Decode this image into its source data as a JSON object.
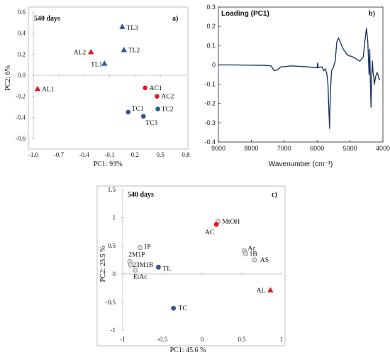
{
  "chart_data": [
    {
      "type": "scatter",
      "panel": "a)",
      "title": "540 days",
      "xlabel": "PC1: 93%",
      "ylabel": "PC2: 6%",
      "xlim": [
        -1.0,
        0.8
      ],
      "ylim": [
        -0.6,
        0.6
      ],
      "xticks": [
        "-1.0",
        "-0.7",
        "-0.4",
        "-0.1",
        "0.2",
        "0.5",
        "0.8"
      ],
      "yticks": [
        "0.6",
        "0.4",
        "0.2",
        "0.0",
        "-0.2",
        "-0.4",
        "-0.6"
      ],
      "colors": {
        "red": "#e8161e",
        "blue": "#2f5597"
      },
      "points": [
        {
          "label": "AL1",
          "x": -0.95,
          "y": -0.13,
          "shape": "triangle",
          "color": "red"
        },
        {
          "label": "AL2",
          "x": -0.32,
          "y": 0.22,
          "shape": "triangle",
          "color": "red"
        },
        {
          "label": "TL3",
          "x": 0.05,
          "y": 0.46,
          "shape": "triangle",
          "color": "blue"
        },
        {
          "label": "TL2",
          "x": 0.07,
          "y": 0.24,
          "shape": "triangle",
          "color": "blue"
        },
        {
          "label": "TL1",
          "x": -0.16,
          "y": 0.11,
          "shape": "triangle",
          "color": "blue"
        },
        {
          "label": "AC1",
          "x": 0.32,
          "y": -0.12,
          "shape": "circle",
          "color": "red"
        },
        {
          "label": "AC2",
          "x": 0.46,
          "y": -0.2,
          "shape": "circle",
          "color": "red"
        },
        {
          "label": "TC1",
          "x": 0.12,
          "y": -0.35,
          "shape": "circle",
          "color": "blue"
        },
        {
          "label": "TC2",
          "x": 0.47,
          "y": -0.32,
          "shape": "circle",
          "color": "blue"
        },
        {
          "label": "TC3",
          "x": 0.3,
          "y": -0.39,
          "shape": "circle",
          "color": "blue"
        }
      ]
    },
    {
      "type": "line",
      "panel": "b)",
      "title": "Loading (PC1)",
      "xlabel": "Wavenumber (cm⁻¹)",
      "ylabel": "",
      "xlim": [
        9000,
        4000
      ],
      "ylim": [
        -0.4,
        0.3
      ],
      "xticks": [
        "9000",
        "8000",
        "7000",
        "6000",
        "5000",
        "4000"
      ],
      "yticks": [
        "0.3",
        "0.2",
        "0.1",
        "0",
        "-0.1",
        "-0.2",
        "-0.3",
        "-0.4"
      ],
      "line_color": "#1f3864",
      "x": [
        9000,
        8600,
        8200,
        7600,
        7400,
        7300,
        7200,
        7100,
        7000,
        6800,
        6500,
        6300,
        6000,
        5980,
        5960,
        5900,
        5850,
        5800,
        5750,
        5700,
        5670,
        5650,
        5620,
        5600,
        5560,
        5500,
        5450,
        5400,
        5350,
        5300,
        5250,
        5200,
        5150,
        5100,
        5050,
        5000,
        4950,
        4900,
        4850,
        4800,
        4700,
        4600,
        4550,
        4500,
        4460,
        4420,
        4400,
        4380,
        4360,
        4340,
        4320,
        4300,
        4280,
        4260,
        4240,
        4220,
        4200,
        4180,
        4150,
        4120,
        4100
      ],
      "y": [
        0.0,
        0.0,
        -0.001,
        -0.002,
        -0.005,
        -0.03,
        -0.025,
        -0.01,
        -0.01,
        -0.005,
        -0.008,
        -0.01,
        -0.015,
        0.01,
        -0.015,
        -0.012,
        -0.01,
        -0.03,
        -0.02,
        -0.05,
        -0.1,
        -0.2,
        -0.33,
        -0.15,
        -0.03,
        -0.01,
        0.02,
        0.12,
        0.14,
        0.12,
        0.1,
        0.08,
        0.07,
        0.055,
        0.05,
        0.045,
        0.045,
        0.04,
        0.035,
        0.03,
        0.02,
        0.04,
        0.12,
        0.19,
        0.12,
        -0.05,
        0.08,
        -0.1,
        -0.22,
        -0.05,
        0.02,
        -0.04,
        -0.06,
        -0.1,
        -0.08,
        -0.06,
        -0.05,
        -0.04,
        -0.05,
        -0.07,
        -0.08
      ]
    },
    {
      "type": "scatter",
      "panel": "c)",
      "title": "540 days",
      "xlabel": "PC1: 45.6 %",
      "ylabel": "PC2: 23.5 %",
      "xlim": [
        -1.0,
        1.0
      ],
      "ylim": [
        -1.0,
        1.5
      ],
      "xticks": [
        "-1",
        "-0.5",
        "0",
        "0.5",
        "1"
      ],
      "yticks": [
        "1.5",
        "1",
        "0.5",
        "0",
        "-0.5",
        "-1"
      ],
      "points": [
        {
          "label": "MtOH",
          "x": 0.2,
          "y": 0.93,
          "shape": "circle",
          "color": "grey"
        },
        {
          "label": "AC",
          "x": 0.18,
          "y": 0.88,
          "shape": "circle",
          "color": "red"
        },
        {
          "label": "Ac",
          "x": 0.53,
          "y": 0.41,
          "shape": "circle",
          "color": "grey"
        },
        {
          "label": "1B",
          "x": 0.55,
          "y": 0.36,
          "shape": "circle",
          "color": "grey"
        },
        {
          "label": "AS",
          "x": 0.66,
          "y": 0.25,
          "shape": "circle",
          "color": "grey"
        },
        {
          "label": "1P",
          "x": -0.78,
          "y": 0.47,
          "shape": "circle",
          "color": "grey"
        },
        {
          "label": "2M1P",
          "x": -0.91,
          "y": 0.22,
          "shape": "circle",
          "color": "grey"
        },
        {
          "label": "23M1B",
          "x": -0.9,
          "y": 0.16,
          "shape": "circle",
          "color": "grey"
        },
        {
          "label": "EtAc",
          "x": -0.84,
          "y": 0.07,
          "shape": "circle",
          "color": "grey"
        },
        {
          "label": "TL",
          "x": -0.55,
          "y": 0.12,
          "shape": "circle",
          "color": "blue"
        },
        {
          "label": "TC",
          "x": -0.36,
          "y": -0.61,
          "shape": "circle",
          "color": "blue"
        },
        {
          "label": "AL",
          "x": 0.86,
          "y": -0.29,
          "shape": "triangle",
          "color": "red"
        }
      ]
    }
  ]
}
